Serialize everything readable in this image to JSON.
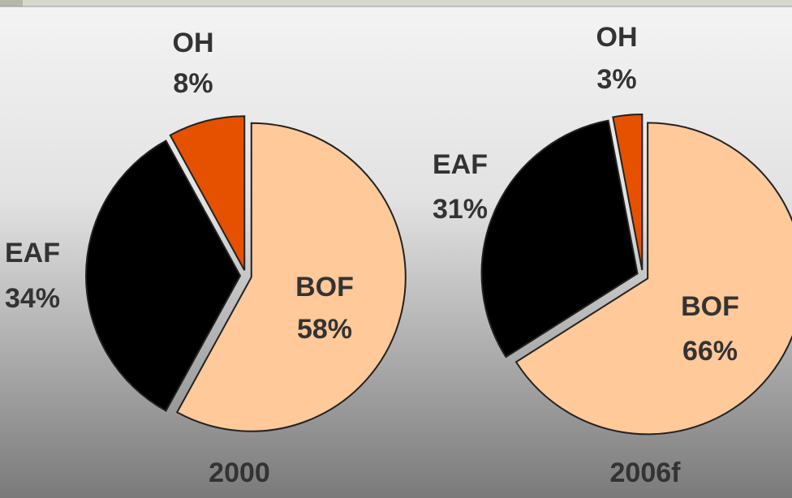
{
  "chart_data": [
    {
      "type": "pie",
      "title": "2000",
      "categories": [
        "BOF",
        "EAF",
        "OH"
      ],
      "values": [
        58,
        34,
        8
      ],
      "value_labels": [
        "58%",
        "34%",
        "8%"
      ],
      "colors": [
        "#ffc99a",
        "#000000",
        "#e65100"
      ]
    },
    {
      "type": "pie",
      "title": "2006f",
      "categories": [
        "BOF",
        "EAF",
        "OH"
      ],
      "values": [
        66,
        31,
        3
      ],
      "value_labels": [
        "66%",
        "31%",
        "3%"
      ],
      "colors": [
        "#ffc99a",
        "#000000",
        "#e65100"
      ]
    }
  ]
}
